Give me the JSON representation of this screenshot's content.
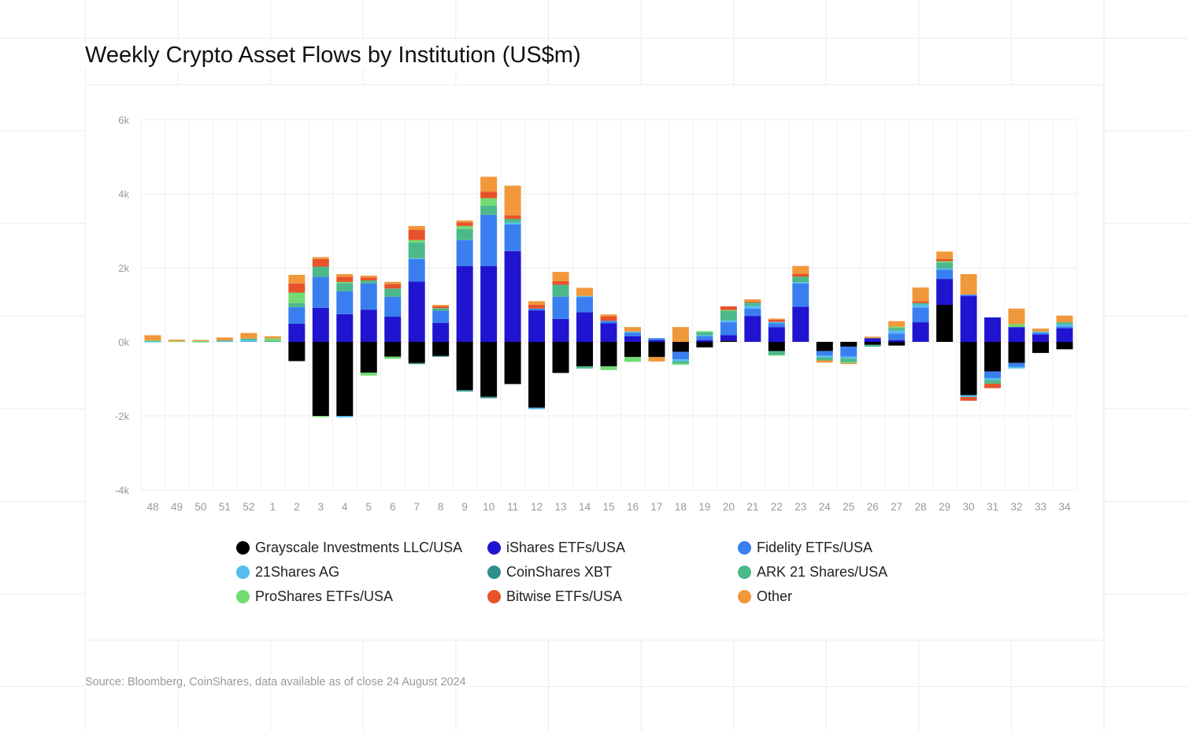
{
  "chart_data": {
    "type": "bar",
    "stacked": true,
    "title": "Weekly Crypto Asset Flows by Institution (US$m)",
    "xlabel": "",
    "ylabel": "",
    "ylim": [
      -4000,
      6000
    ],
    "yticks": [
      {
        "value": 6000,
        "label": "6k"
      },
      {
        "value": 4000,
        "label": "4k"
      },
      {
        "value": 2000,
        "label": "2k"
      },
      {
        "value": 0,
        "label": "0k"
      },
      {
        "value": -2000,
        "label": "-2k"
      },
      {
        "value": -4000,
        "label": "-4k"
      }
    ],
    "grid": true,
    "legend_position": "bottom",
    "categories": [
      "48",
      "49",
      "50",
      "51",
      "52",
      "1",
      "2",
      "3",
      "4",
      "5",
      "6",
      "7",
      "8",
      "9",
      "10",
      "11",
      "12",
      "13",
      "14",
      "15",
      "16",
      "17",
      "18",
      "19",
      "20",
      "21",
      "22",
      "23",
      "24",
      "25",
      "26",
      "27",
      "28",
      "29",
      "30",
      "31",
      "32",
      "33",
      "34"
    ],
    "series": [
      {
        "name": "Grayscale Investments LLC/USA",
        "color": "#000000",
        "values": [
          0,
          0,
          0,
          0,
          0,
          0,
          -520,
          -2000,
          -2000,
          -830,
          -400,
          -570,
          -380,
          -1300,
          -1480,
          -1140,
          -1780,
          -840,
          -660,
          -660,
          -410,
          -410,
          -270,
          -150,
          30,
          0,
          -250,
          0,
          -250,
          -130,
          -80,
          -100,
          0,
          1000,
          -1440,
          -800,
          -570,
          -300,
          -200
        ]
      },
      {
        "name": "iShares ETFs/USA",
        "color": "#2014d0",
        "values": [
          0,
          0,
          0,
          0,
          0,
          0,
          490,
          920,
          750,
          870,
          680,
          1630,
          510,
          2050,
          2050,
          2450,
          850,
          620,
          800,
          500,
          150,
          50,
          0,
          50,
          150,
          700,
          400,
          950,
          0,
          0,
          100,
          50,
          530,
          700,
          1240,
          660,
          400,
          200,
          370
        ]
      },
      {
        "name": "Fidelity ETFs/USA",
        "color": "#3a7ff0",
        "values": [
          0,
          0,
          0,
          0,
          0,
          0,
          450,
          840,
          620,
          710,
          540,
          610,
          330,
          700,
          1380,
          720,
          50,
          600,
          410,
          70,
          100,
          50,
          -200,
          100,
          350,
          200,
          100,
          630,
          -120,
          -270,
          0,
          180,
          400,
          250,
          40,
          -180,
          -100,
          50,
          50
        ]
      },
      {
        "name": "21Shares AG",
        "color": "#55bdf0",
        "values": [
          10,
          0,
          0,
          20,
          50,
          0,
          0,
          0,
          -40,
          0,
          0,
          20,
          0,
          0,
          0,
          50,
          -40,
          0,
          30,
          0,
          30,
          0,
          -50,
          30,
          50,
          80,
          40,
          30,
          -50,
          -50,
          0,
          80,
          80,
          40,
          -50,
          -50,
          -50,
          30,
          50
        ]
      },
      {
        "name": "CoinShares XBT",
        "color": "#2f8f8a",
        "values": [
          0,
          0,
          0,
          0,
          0,
          0,
          0,
          0,
          0,
          0,
          0,
          -30,
          -20,
          -40,
          -40,
          0,
          0,
          0,
          0,
          0,
          0,
          0,
          0,
          0,
          0,
          0,
          0,
          0,
          0,
          0,
          0,
          0,
          0,
          0,
          0,
          0,
          0,
          0,
          0
        ]
      },
      {
        "name": "ARK 21 Shares/USA",
        "color": "#4cb98a",
        "values": [
          20,
          0,
          10,
          20,
          40,
          30,
          110,
          270,
          220,
          80,
          220,
          420,
          70,
          300,
          250,
          100,
          0,
          320,
          -60,
          0,
          0,
          0,
          -70,
          80,
          250,
          80,
          -100,
          150,
          -80,
          -100,
          -50,
          70,
          40,
          150,
          0,
          -100,
          0,
          0,
          60
        ]
      },
      {
        "name": "ProShares ETFs/USA",
        "color": "#72dc72",
        "values": [
          10,
          20,
          10,
          0,
          0,
          60,
          280,
          -30,
          30,
          -80,
          -60,
          70,
          0,
          80,
          200,
          0,
          0,
          0,
          0,
          -100,
          -130,
          0,
          -30,
          30,
          30,
          0,
          -20,
          0,
          0,
          -20,
          0,
          30,
          0,
          40,
          0,
          0,
          80,
          0,
          0
        ]
      },
      {
        "name": "Bitwise ETFs/USA",
        "color": "#e8522a",
        "values": [
          0,
          0,
          0,
          0,
          0,
          0,
          250,
          210,
          140,
          80,
          120,
          280,
          50,
          100,
          180,
          100,
          100,
          100,
          0,
          120,
          0,
          0,
          0,
          0,
          100,
          30,
          60,
          70,
          0,
          0,
          0,
          0,
          50,
          60,
          -100,
          -120,
          0,
          0,
          0
        ]
      },
      {
        "name": "Other",
        "color": "#f0983a",
        "values": [
          140,
          40,
          30,
          80,
          150,
          60,
          230,
          50,
          70,
          50,
          60,
          100,
          40,
          50,
          400,
          800,
          100,
          250,
          220,
          50,
          120,
          -120,
          400,
          0,
          0,
          60,
          30,
          220,
          -60,
          -30,
          40,
          150,
          370,
          200,
          550,
          0,
          420,
          80,
          180
        ]
      }
    ]
  },
  "source": "Source: Bloomberg, CoinShares, data available as of close 24 August 2024"
}
